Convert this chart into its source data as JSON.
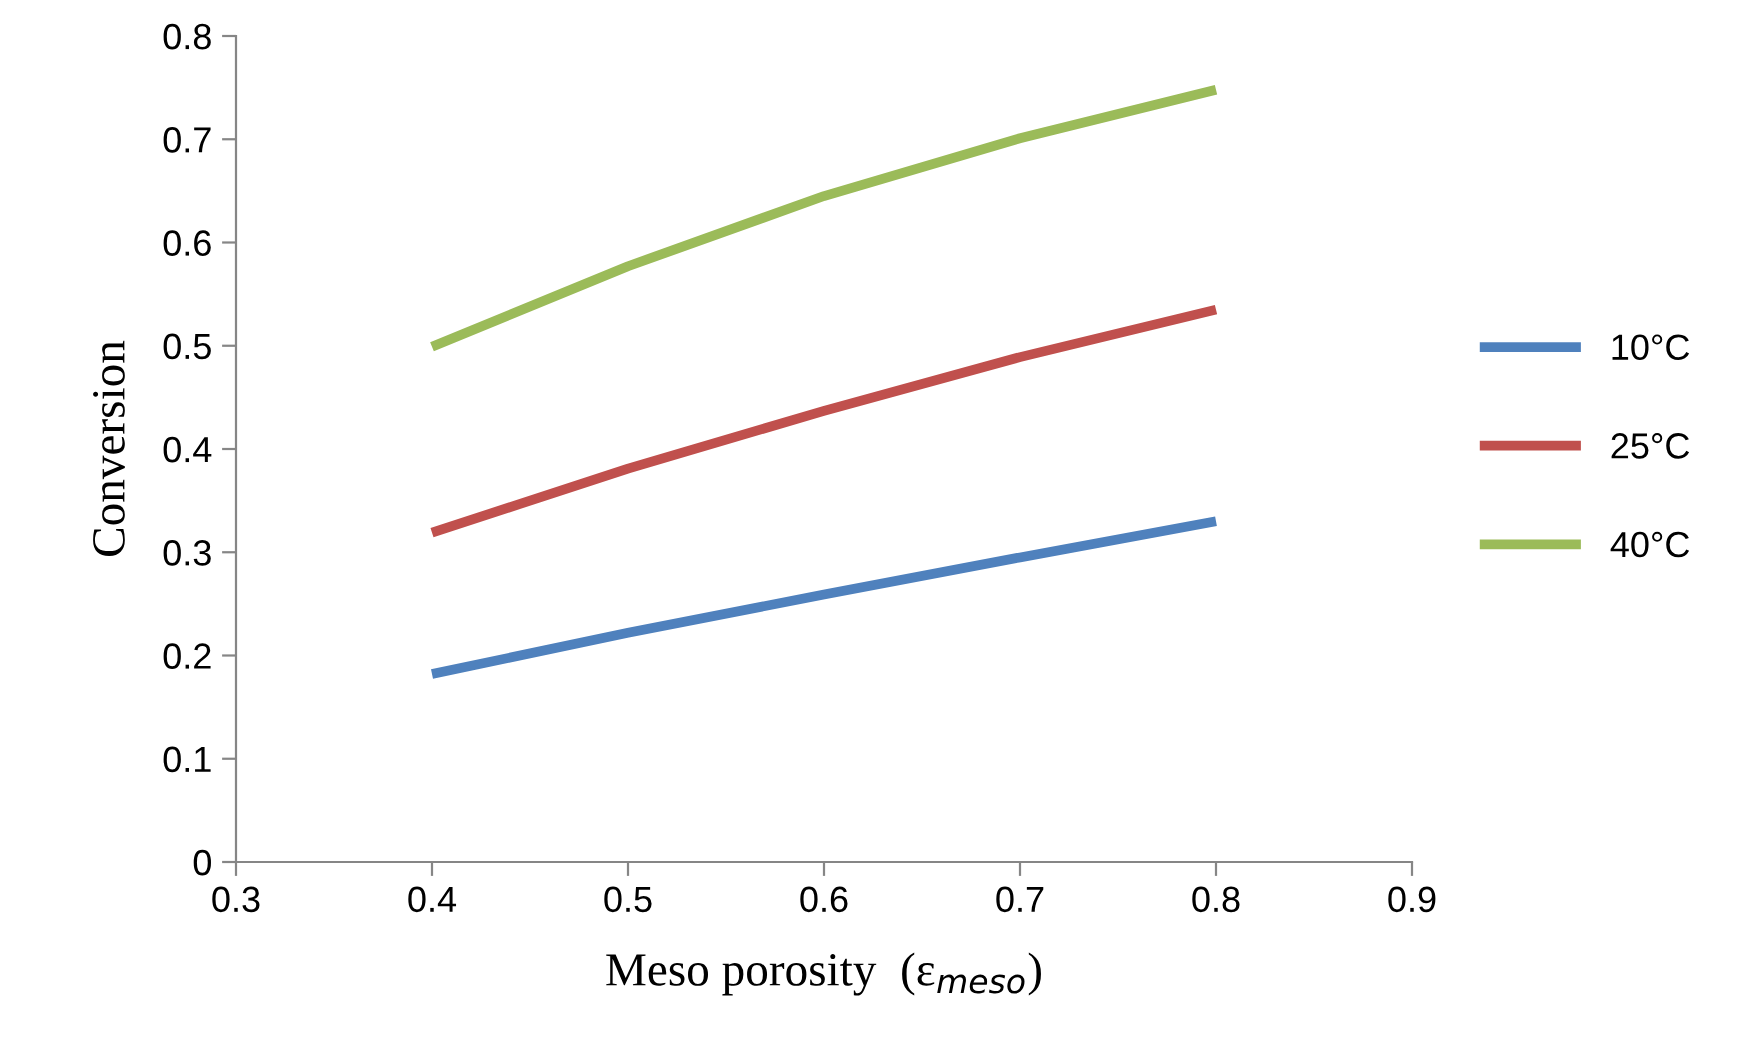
{
  "chart_data": {
    "type": "line",
    "xlabel": "Meso porosity  (ε$_{meso}$)",
    "ylabel": "Conversion",
    "x": [
      0.4,
      0.5,
      0.6,
      0.7,
      0.8
    ],
    "series": [
      {
        "name": "10°C",
        "color": "#4f81bd",
        "values": [
          0.182,
          0.222,
          0.259,
          0.295,
          0.33
        ]
      },
      {
        "name": "25°C",
        "color": "#c0504d",
        "values": [
          0.319,
          0.381,
          0.437,
          0.489,
          0.535
        ]
      },
      {
        "name": "40°C",
        "color": "#9bbb59",
        "values": [
          0.499,
          0.577,
          0.645,
          0.701,
          0.748
        ]
      }
    ],
    "xlim": [
      0.3,
      0.9
    ],
    "xticks": [
      0.3,
      0.4,
      0.5,
      0.6,
      0.7,
      0.8,
      0.9
    ],
    "ylim": [
      0,
      0.8
    ],
    "yticks": [
      0,
      0.1,
      0.2,
      0.3,
      0.4,
      0.5,
      0.6,
      0.7,
      0.8
    ],
    "legend": "right",
    "grid": false,
    "marker": "none",
    "line_style": "solid"
  }
}
